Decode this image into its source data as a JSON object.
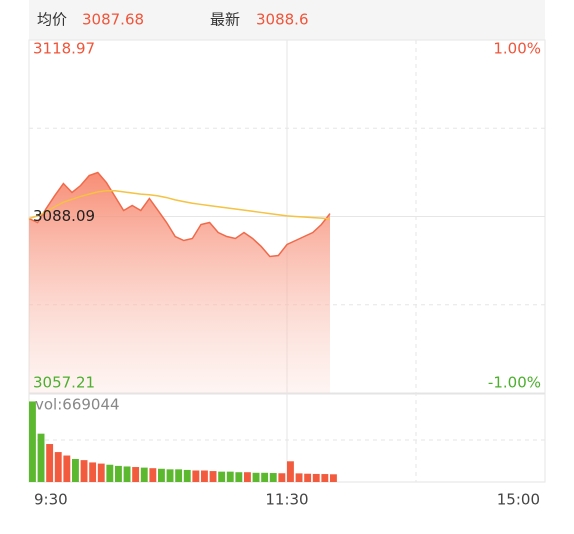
{
  "header": {
    "avg_label": "均价",
    "avg_value": 3087.68,
    "last_label": "最新",
    "last_value": 3088.6
  },
  "chart_data": {
    "type": "intraday",
    "x": [
      0,
      4,
      8,
      12,
      16,
      20,
      24,
      28,
      32,
      36,
      40,
      44,
      48,
      52,
      56,
      60,
      64,
      68,
      72,
      76,
      80,
      84,
      88,
      92,
      96,
      100,
      104,
      108,
      112,
      116,
      120,
      124,
      128,
      132,
      136,
      140
    ],
    "series": [
      {
        "name": "price",
        "color": "#f06a4a",
        "values": [
          3087.74,
          3087.04,
          3089.49,
          3091.76,
          3093.86,
          3092.29,
          3093.51,
          3095.26,
          3095.78,
          3094.03,
          3091.59,
          3089.14,
          3090.01,
          3089.14,
          3091.24,
          3089.14,
          3087.04,
          3084.59,
          3083.89,
          3084.24,
          3086.69,
          3087.04,
          3085.29,
          3084.59,
          3084.24,
          3085.29,
          3084.24,
          3082.85,
          3081.1,
          3081.27,
          3083.19,
          3083.89,
          3084.59,
          3085.29,
          3086.69,
          3088.6
        ]
      },
      {
        "name": "average",
        "color": "#f5c242",
        "values": [
          3087.74,
          3088.2,
          3088.9,
          3089.8,
          3090.6,
          3091.1,
          3091.6,
          3092.0,
          3092.4,
          3092.6,
          3092.6,
          3092.4,
          3092.2,
          3092.0,
          3091.9,
          3091.7,
          3091.4,
          3091.0,
          3090.7,
          3090.4,
          3090.2,
          3090.0,
          3089.8,
          3089.6,
          3089.4,
          3089.2,
          3089.0,
          3088.8,
          3088.6,
          3088.4,
          3088.2,
          3088.1,
          3088.0,
          3087.9,
          3087.8,
          3087.68
        ]
      }
    ],
    "volume": {
      "label": "vol:669044",
      "up_color": "#f25b3d",
      "down_color": "#5cb82e",
      "ylim": [
        0,
        7300000
      ],
      "values": [
        7000000,
        4200000,
        3300000,
        2600000,
        2300000,
        2000000,
        1900000,
        1700000,
        1600000,
        1500000,
        1400000,
        1350000,
        1300000,
        1250000,
        1200000,
        1150000,
        1100000,
        1100000,
        1050000,
        1000000,
        1000000,
        950000,
        900000,
        900000,
        850000,
        850000,
        800000,
        800000,
        780000,
        760000,
        1800000,
        750000,
        720000,
        700000,
        690000,
        669044
      ]
    },
    "xlim": [
      0,
      240
    ],
    "xticks": [
      {
        "value": 0,
        "label": "9:30"
      },
      {
        "value": 120,
        "label": "11:30"
      },
      {
        "value": 240,
        "label": "15:00"
      }
    ],
    "minor_xticks": [
      180
    ],
    "ylim": [
      3057.21,
      3118.97
    ],
    "yticks": [
      3118.97,
      3088.09,
      3057.21
    ],
    "minor_yticks": [
      3103.53,
      3072.65
    ],
    "y2lim": [
      -1,
      1
    ],
    "y2ticks": [
      {
        "value": 1,
        "label": "1.00%"
      },
      {
        "value": -1,
        "label": "-1.00%"
      }
    ],
    "up_color": "#f0553a",
    "down_color": "#4caf2e",
    "grid": true
  }
}
